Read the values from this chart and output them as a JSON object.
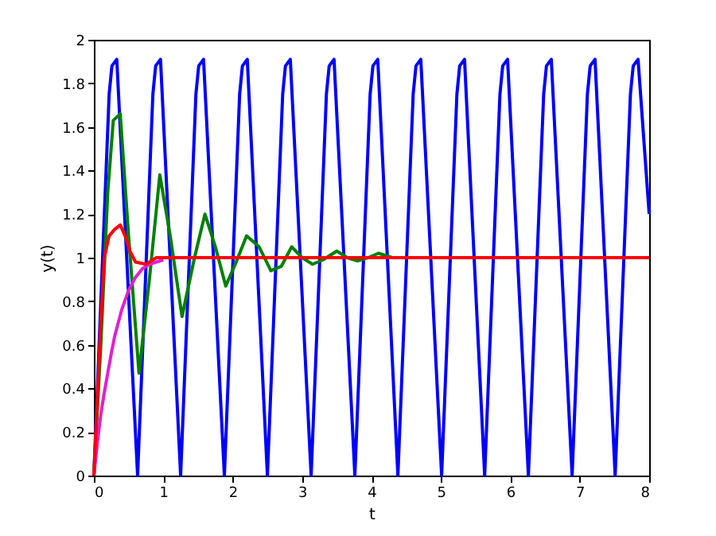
{
  "chart_data": {
    "type": "line",
    "xlabel": "t",
    "ylabel": "y(t)",
    "xlim": [
      0,
      8
    ],
    "xticks": [
      0,
      1,
      2,
      3,
      4,
      5,
      6,
      7,
      8
    ],
    "ylim": [
      0,
      2
    ],
    "yticks": [
      0,
      0.2,
      0.4,
      0.6,
      0.8,
      1,
      1.2,
      1.4,
      1.6,
      1.8,
      2
    ],
    "grid": false,
    "marker": "none",
    "line_style": "solid",
    "series": [
      {
        "color": "#0000ff",
        "x": [
          0,
          0.22,
          0.26,
          0.33,
          0.63,
          0.85,
          0.89,
          0.96,
          1.25,
          1.47,
          1.51,
          1.58,
          1.88,
          2.1,
          2.14,
          2.21,
          2.5,
          2.72,
          2.76,
          2.83,
          3.13,
          3.35,
          3.39,
          3.46,
          3.76,
          3.98,
          4.02,
          4.09,
          4.38,
          4.6,
          4.64,
          4.71,
          5.01,
          5.23,
          5.27,
          5.34,
          5.63,
          5.85,
          5.89,
          5.96,
          6.26,
          6.48,
          6.52,
          6.59,
          6.89,
          7.11,
          7.15,
          7.22,
          7.51,
          7.73,
          7.77,
          7.84,
          8.0
        ],
        "values": [
          0,
          1.75,
          1.88,
          1.91,
          0,
          1.75,
          1.88,
          1.91,
          0,
          1.75,
          1.88,
          1.91,
          0,
          1.75,
          1.88,
          1.91,
          0,
          1.75,
          1.88,
          1.91,
          0,
          1.75,
          1.88,
          1.91,
          0,
          1.75,
          1.88,
          1.91,
          0,
          1.75,
          1.88,
          1.91,
          0,
          1.75,
          1.88,
          1.91,
          0,
          1.75,
          1.88,
          1.91,
          0,
          1.75,
          1.88,
          1.91,
          0,
          1.75,
          1.88,
          1.91,
          0,
          1.75,
          1.88,
          1.91,
          1.2
        ]
      },
      {
        "color": "#008000",
        "x": [
          0,
          0.1,
          0.2,
          0.28,
          0.38,
          0.5,
          0.65,
          0.8,
          0.95,
          1.1,
          1.27,
          1.45,
          1.6,
          1.75,
          1.9,
          2.05,
          2.2,
          2.38,
          2.55,
          2.7,
          2.85,
          3.0,
          3.15,
          3.3,
          3.5,
          3.65,
          3.8,
          3.95,
          4.1,
          4.3
        ],
        "values": [
          0,
          0.6,
          1.3,
          1.63,
          1.66,
          1.1,
          0.47,
          0.9,
          1.38,
          1.1,
          0.73,
          1.0,
          1.2,
          1.05,
          0.87,
          0.98,
          1.1,
          1.05,
          0.94,
          0.96,
          1.05,
          1.0,
          0.97,
          0.99,
          1.03,
          1.0,
          0.985,
          1.0,
          1.02,
          1.0
        ]
      },
      {
        "color": "#e020d0",
        "x": [
          0,
          0.05,
          0.1,
          0.15,
          0.2,
          0.25,
          0.3,
          0.4,
          0.5,
          0.6,
          0.7,
          0.8,
          1.0
        ],
        "values": [
          0,
          0.15,
          0.28,
          0.38,
          0.47,
          0.56,
          0.64,
          0.76,
          0.85,
          0.91,
          0.95,
          0.97,
          0.99
        ]
      },
      {
        "color": "#ff0000",
        "x": [
          0,
          0.05,
          0.1,
          0.15,
          0.22,
          0.3,
          0.38,
          0.45,
          0.52,
          0.6,
          0.75,
          0.9,
          1.2,
          2.0,
          3.0,
          4.0,
          5.0,
          6.0,
          7.0,
          8.0
        ],
        "values": [
          0,
          0.35,
          0.7,
          1.0,
          1.1,
          1.13,
          1.15,
          1.1,
          1.03,
          0.98,
          0.97,
          1.0,
          1.0,
          1.0,
          1.0,
          1.0,
          1.0,
          1.0,
          1.0,
          1.0
        ]
      }
    ]
  }
}
